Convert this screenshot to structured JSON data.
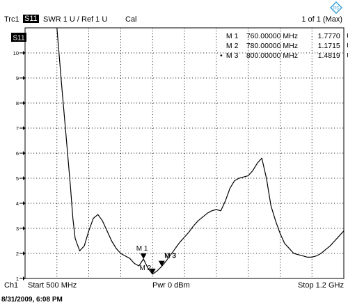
{
  "header": {
    "trace": "Trc1",
    "param": "S11",
    "format": "SWR  1 U /  Ref 1 U",
    "cal": "Cal",
    "page": "1 of 1 (Max)"
  },
  "logo_icon": "rohde-schwarz-diamond-icon",
  "trace_tag": "S11",
  "markers_table": [
    {
      "id": "M 1",
      "freq": "760.00000 MHz",
      "value": "1.7770",
      "unit": "U",
      "active": false
    },
    {
      "id": "M 2",
      "freq": "780.00000 MHz",
      "value": "1.1715",
      "unit": "U",
      "active": false
    },
    {
      "id": "M 3",
      "freq": "800.00000 MHz",
      "value": "1.4819",
      "unit": "U",
      "active": true
    }
  ],
  "footer": {
    "channel": "Ch1",
    "start": "Start  500 MHz",
    "power": "Pwr  0 dBm",
    "stop": "Stop  1.2 GHz",
    "timestamp": "8/31/2009, 6:08 PM"
  },
  "colors": {
    "background": "#ffffff",
    "grid": "#000000",
    "trace": "#000000"
  },
  "chart_data": {
    "type": "line",
    "xlim": [
      500,
      1200
    ],
    "ylim": [
      1,
      11
    ],
    "y_ticks": [
      "1",
      "2",
      "3",
      "4",
      "5",
      "6",
      "7",
      "8",
      "9",
      "10"
    ],
    "grid": true,
    "series": [
      {
        "x": [
          570,
          580,
          590,
          600,
          605,
          610,
          620,
          630,
          640,
          650,
          660,
          670,
          680,
          690,
          700,
          710,
          720,
          730,
          740,
          750,
          760,
          770,
          780,
          790,
          800,
          810,
          820,
          830,
          840,
          850,
          860,
          870,
          880,
          890,
          900,
          910,
          920,
          930,
          940,
          950,
          960,
          970,
          980,
          990,
          1000,
          1010,
          1020,
          1030,
          1040,
          1050,
          1060,
          1070,
          1080,
          1090,
          1100,
          1110,
          1120,
          1130,
          1140,
          1150,
          1160,
          1170,
          1180,
          1190,
          1200
        ],
        "y": [
          11.2,
          8.8,
          6.7,
          4.6,
          3.4,
          2.6,
          2.1,
          2.3,
          2.9,
          3.4,
          3.55,
          3.3,
          2.9,
          2.5,
          2.2,
          2.0,
          1.9,
          1.8,
          1.6,
          1.5,
          1.777,
          1.4,
          1.1715,
          1.3,
          1.4819,
          1.7,
          1.95,
          2.2,
          2.45,
          2.65,
          2.85,
          3.1,
          3.3,
          3.45,
          3.6,
          3.7,
          3.75,
          3.7,
          4.1,
          4.6,
          4.9,
          5.0,
          5.05,
          5.1,
          5.3,
          5.6,
          5.8,
          5.0,
          3.9,
          3.3,
          2.8,
          2.4,
          2.2,
          2.0,
          1.95,
          1.9,
          1.85,
          1.85,
          1.9,
          2.0,
          2.15,
          2.3,
          2.5,
          2.7,
          2.9
        ]
      }
    ],
    "markers": [
      {
        "label": "M 1",
        "x": 760,
        "y": 1.777
      },
      {
        "label": "M 2",
        "x": 780,
        "y": 1.1715
      },
      {
        "label": "M 3",
        "x": 800,
        "y": 1.4819
      }
    ]
  }
}
